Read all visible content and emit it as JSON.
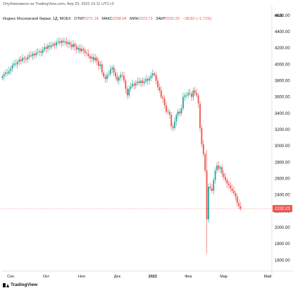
{
  "header": {
    "published": "Опубликовано на TradingView.com, Апр 23, 2022 15:11 UTC+3"
  },
  "legend": {
    "title": "Индекс Московской биржи, 1Д, MOEX",
    "open_label": "ОТКР",
    "open_value": "2271.18",
    "high_label": "МАКС",
    "high_value": "2298.04",
    "low_label": "МИН",
    "low_value": "2223.73",
    "close_label": "ЗАКР",
    "close_value": "2232.23",
    "change": "−38.82 (−1.71%)"
  },
  "footer": {
    "brand": "TradingView"
  },
  "colors": {
    "up": "#26a69a",
    "down": "#ef5350",
    "price_line": "#ef5350",
    "price_tag": "#ef5350"
  },
  "chart_data": {
    "type": "candlestick",
    "currency": "RUB",
    "y_ticks": [
      1600,
      1800,
      2000,
      2200,
      2400,
      2600,
      2800,
      3000,
      3200,
      3400,
      3600,
      3800,
      4000,
      4200,
      4400,
      4600
    ],
    "ylim": [
      1500,
      4650
    ],
    "x_ticks": [
      {
        "label": "Сен",
        "index": 5
      },
      {
        "label": "Окт",
        "index": 26
      },
      {
        "label": "Ноя",
        "index": 47
      },
      {
        "label": "Дек",
        "index": 68
      },
      {
        "label": "2022",
        "index": 89,
        "bold": true
      },
      {
        "label": "Фев",
        "index": 110
      },
      {
        "label": "Мар",
        "index": 131
      },
      {
        "label": "Май",
        "index": 157
      }
    ],
    "last_price": "2232.23",
    "last_price_value": 2232.23,
    "closes": [
      3850,
      3880,
      3900,
      3890,
      3920,
      3950,
      3990,
      4010,
      4000,
      4030,
      4060,
      4040,
      4080,
      4070,
      4060,
      4090,
      4110,
      4100,
      4130,
      4110,
      4140,
      4150,
      4160,
      4140,
      4180,
      4210,
      4190,
      4230,
      4210,
      4230,
      4250,
      4230,
      4270,
      4280,
      4260,
      4290,
      4270,
      4280,
      4250,
      4270,
      4240,
      4210,
      4250,
      4220,
      4180,
      4200,
      4160,
      4190,
      4170,
      4140,
      4130,
      4100,
      4070,
      4090,
      4050,
      4080,
      4040,
      3980,
      4000,
      3900,
      3850,
      3820,
      3870,
      3880,
      3940,
      3960,
      3900,
      3850,
      3800,
      3840,
      3870,
      3860,
      3800,
      3700,
      3620,
      3700,
      3730,
      3760,
      3740,
      3770,
      3790,
      3770,
      3800,
      3770,
      3790,
      3820,
      3800,
      3830,
      3860,
      3890,
      3870,
      3800,
      3720,
      3680,
      3600,
      3580,
      3500,
      3420,
      3420,
      3380,
      3240,
      3220,
      3300,
      3380,
      3420,
      3400,
      3460,
      3600,
      3620,
      3620,
      3650,
      3640,
      3600,
      3680,
      3650,
      3620,
      3520,
      3220,
      3020,
      2900,
      2700,
      2100,
      2500,
      2480,
      2450,
      2580,
      2700,
      2760,
      2720,
      2740,
      2660,
      2620,
      2580,
      2540,
      2520,
      2480,
      2450,
      2420,
      2380,
      2300,
      2260,
      2232
    ]
  }
}
